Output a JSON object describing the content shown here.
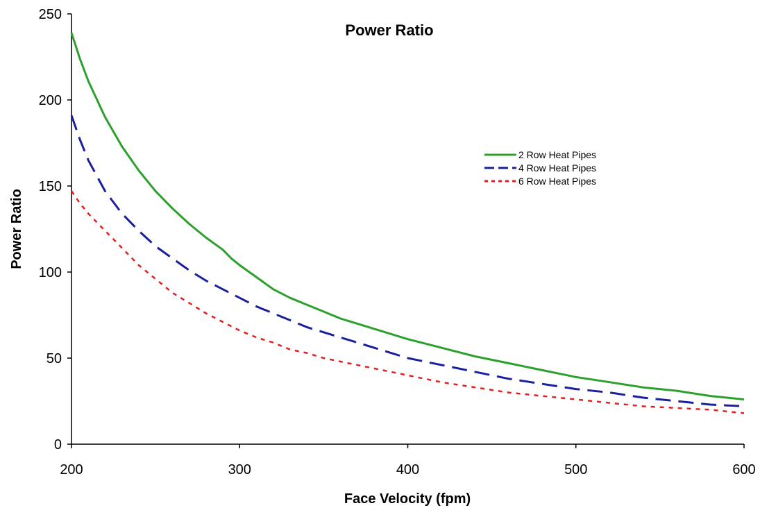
{
  "chart_data": {
    "type": "line",
    "title": "Power Ratio",
    "xlabel": "Face Velocity (fpm)",
    "ylabel": "Power Ratio",
    "xlim": [
      200,
      600
    ],
    "ylim": [
      0,
      250
    ],
    "xticks": [
      200,
      300,
      400,
      500,
      600
    ],
    "yticks": [
      0,
      50,
      100,
      150,
      200,
      250
    ],
    "grid": false,
    "legend_position": "right",
    "series": [
      {
        "name": "2 Row Heat Pipes",
        "color": "#2ca02c",
        "dash": "solid",
        "x": [
          200,
          205,
          210,
          220,
          230,
          240,
          250,
          260,
          270,
          280,
          290,
          295,
          300,
          310,
          320,
          330,
          340,
          350,
          360,
          380,
          400,
          420,
          440,
          460,
          480,
          500,
          520,
          540,
          560,
          580,
          600
        ],
        "y": [
          239,
          224,
          211,
          190,
          173,
          159,
          147,
          137,
          128,
          120,
          113,
          108,
          104,
          97,
          90,
          85,
          81,
          77,
          73,
          67,
          61,
          56,
          51,
          47,
          43,
          39,
          36,
          33,
          31,
          28,
          26
        ]
      },
      {
        "name": "4 Row Heat Pipes",
        "color": "#1a1f9e",
        "dash": "dashed",
        "x": [
          200,
          205,
          210,
          220,
          230,
          240,
          250,
          260,
          270,
          280,
          290,
          300,
          310,
          320,
          330,
          340,
          350,
          360,
          380,
          400,
          420,
          440,
          460,
          480,
          500,
          520,
          540,
          560,
          580,
          600
        ],
        "y": [
          191,
          177,
          165,
          147,
          134,
          124,
          115,
          108,
          101,
          95,
          90,
          85,
          80,
          76,
          72,
          68,
          65,
          62,
          56,
          50,
          46,
          42,
          38,
          35,
          32,
          30,
          27,
          25,
          23,
          22
        ]
      },
      {
        "name": "6 Row Heat Pipes",
        "color": "#e02020",
        "dash": "dotted",
        "x": [
          200,
          205,
          210,
          220,
          230,
          240,
          250,
          260,
          270,
          280,
          290,
          300,
          310,
          320,
          330,
          340,
          350,
          360,
          380,
          400,
          420,
          440,
          460,
          480,
          500,
          520,
          540,
          560,
          580,
          600
        ],
        "y": [
          147,
          140,
          134,
          124,
          114,
          104,
          96,
          88,
          82,
          76,
          71,
          66,
          62,
          59,
          55,
          53,
          50,
          48,
          44,
          40,
          36,
          33,
          30,
          28,
          26,
          24,
          22,
          21,
          20,
          18
        ]
      }
    ]
  }
}
